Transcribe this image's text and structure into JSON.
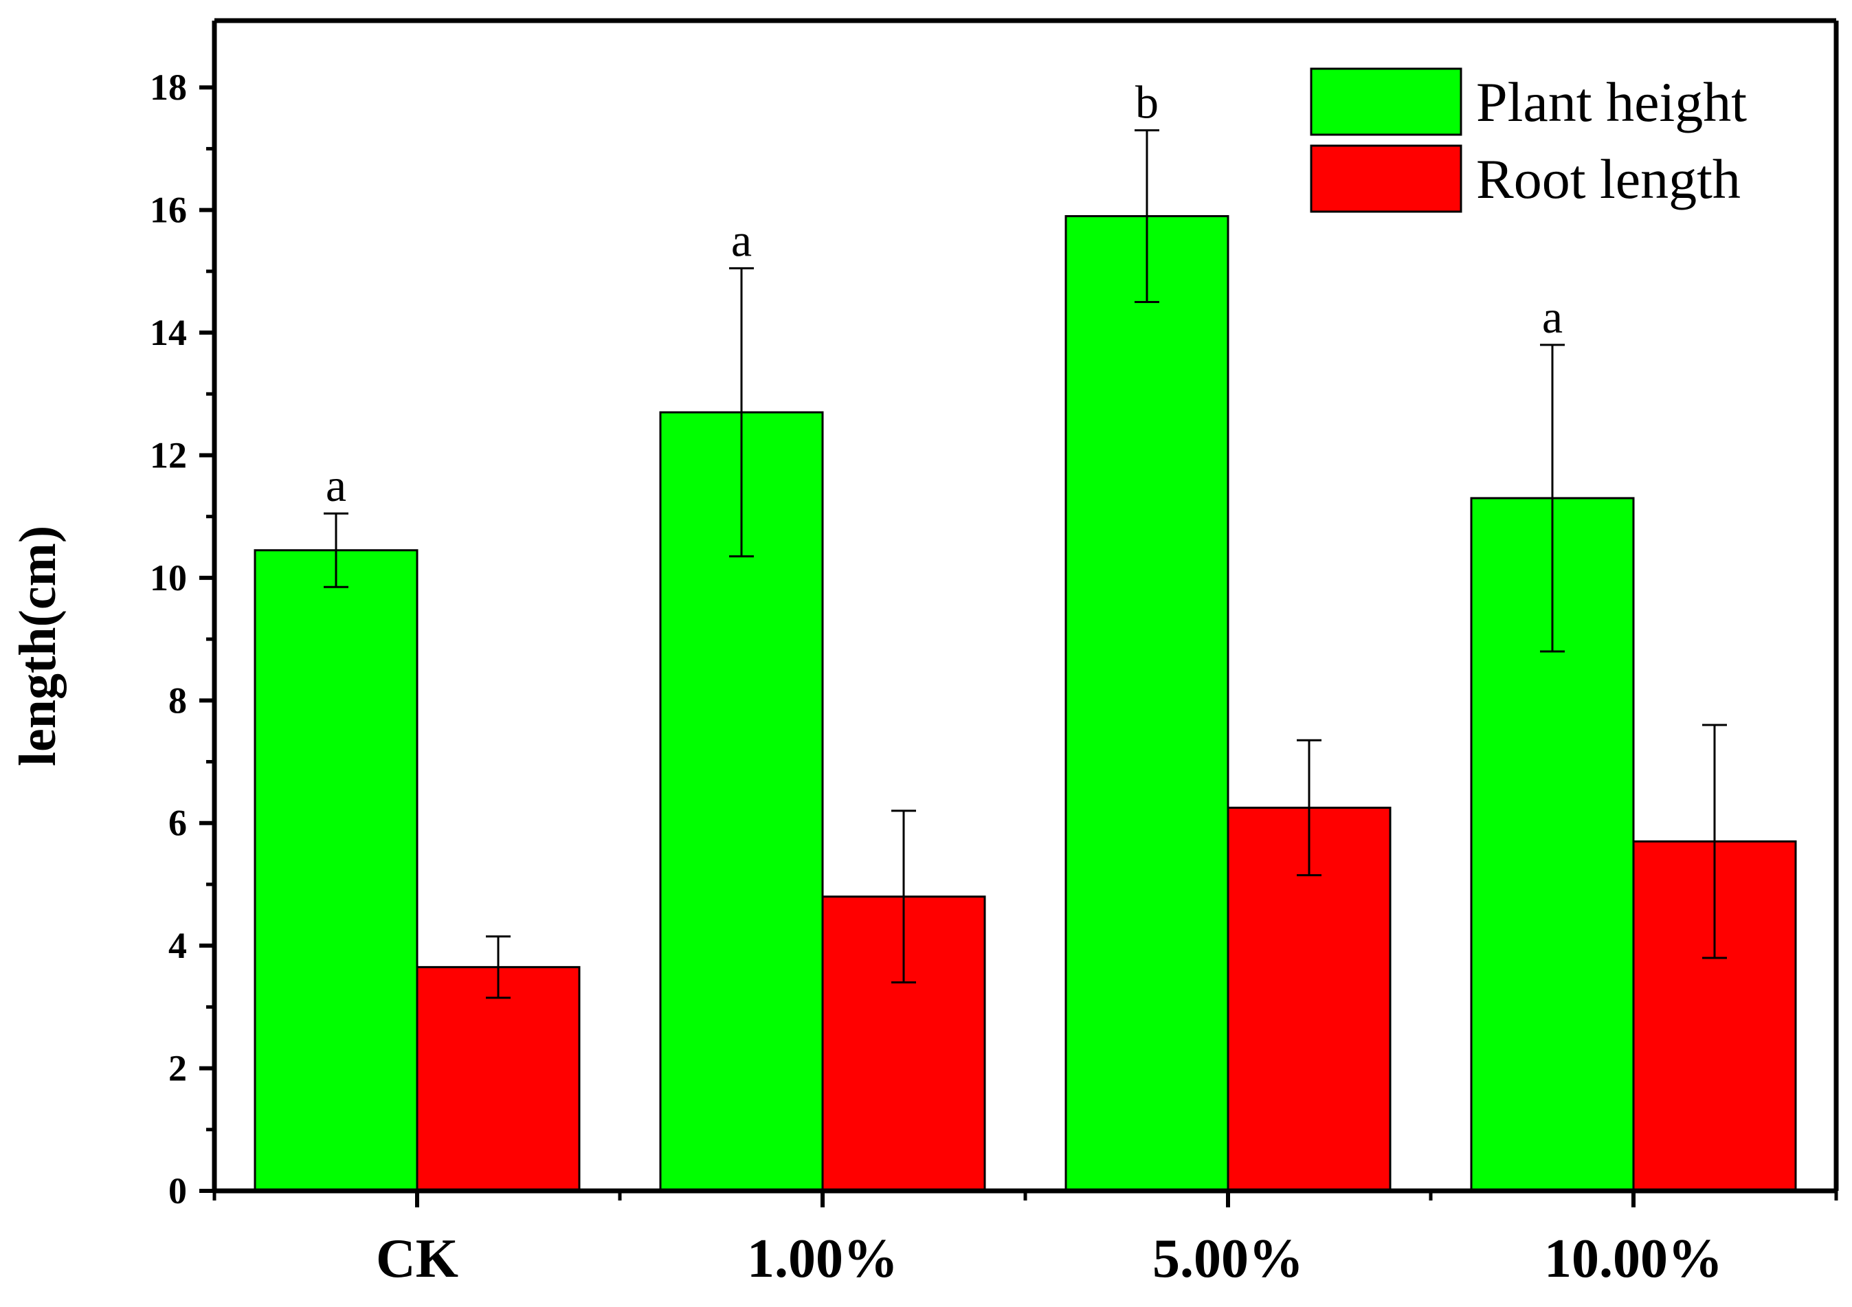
{
  "chart_data": {
    "type": "bar",
    "title": "",
    "xlabel": "",
    "ylabel": "length(cm)",
    "ylim": [
      0,
      19
    ],
    "yticks": [
      0,
      2,
      4,
      6,
      8,
      10,
      12,
      14,
      16,
      18
    ],
    "ytick_labels": [
      "0",
      "2",
      "4",
      "6",
      "8",
      "10",
      "12",
      "14",
      "16",
      "18"
    ],
    "grid": false,
    "legend_position": "top-right",
    "categories": [
      "CK",
      "1.00%",
      "5.00%",
      "10.00%"
    ],
    "series": [
      {
        "name": "Plant height",
        "color": "#00ff00",
        "values": [
          10.45,
          12.7,
          15.9,
          11.3
        ],
        "errors": [
          0.6,
          2.35,
          1.4,
          2.5
        ],
        "annotations": [
          "a",
          "a",
          "b",
          "a"
        ]
      },
      {
        "name": "Root length",
        "color": "#ff0000",
        "values": [
          3.65,
          4.8,
          6.25,
          5.7
        ],
        "errors": [
          0.5,
          1.4,
          1.1,
          1.9
        ],
        "annotations": [
          "",
          "",
          "",
          ""
        ]
      }
    ]
  }
}
